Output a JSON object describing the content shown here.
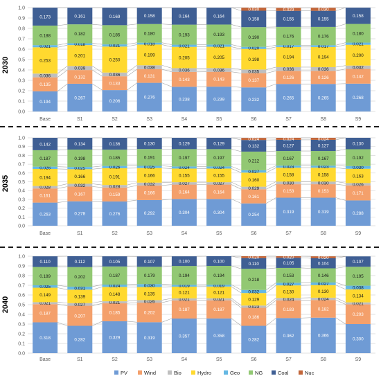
{
  "chart_data": [
    {
      "type": "bar",
      "stacked": true,
      "panel_label": "2030",
      "categories": [
        "Base",
        "S1",
        "S2",
        "S3",
        "S4",
        "S5",
        "S6",
        "S7",
        "S8",
        "S9"
      ],
      "yticks": [
        "0.0",
        "0.1",
        "0.2",
        "0.3",
        "0.4",
        "0.5",
        "0.6",
        "0.7",
        "0.8",
        "0.9",
        "1.0"
      ],
      "ylim": [
        0,
        1
      ],
      "series": [
        {
          "name": "PV",
          "values": [
            0.194,
            0.267,
            0.206,
            0.276,
            0.238,
            0.239,
            0.232,
            0.265,
            0.265,
            0.268
          ]
        },
        {
          "name": "Wind",
          "values": [
            0.135,
            0.132,
            0.133,
            0.131,
            0.143,
            0.143,
            0.137,
            0.126,
            0.126,
            0.142
          ]
        },
        {
          "name": "Bio",
          "values": [
            0.036,
            0.039,
            0.036,
            0.038,
            0.036,
            0.036,
            0.035,
            0.036,
            0.036,
            0.032
          ]
        },
        {
          "name": "Hydro",
          "values": [
            0.253,
            0.201,
            0.25,
            0.199,
            0.205,
            0.205,
            0.198,
            0.194,
            0.194,
            0.2
          ]
        },
        {
          "name": "Geo",
          "values": [
            0.021,
            0.018,
            0.021,
            0.018,
            0.021,
            0.021,
            0.02,
            0.017,
            0.017,
            0.021
          ]
        },
        {
          "name": "NG",
          "values": [
            0.188,
            0.182,
            0.185,
            0.18,
            0.193,
            0.193,
            0.19,
            0.176,
            0.176,
            0.18
          ]
        },
        {
          "name": "Coal",
          "values": [
            0.173,
            0.161,
            0.169,
            0.158,
            0.164,
            0.164,
            0.158,
            0.155,
            0.155,
            0.158
          ]
        },
        {
          "name": "Nuc",
          "values": [
            0,
            0,
            0,
            0,
            0,
            0,
            0.03,
            0.029,
            0.03,
            0
          ]
        }
      ]
    },
    {
      "type": "bar",
      "stacked": true,
      "panel_label": "2035",
      "categories": [
        "Base",
        "S1",
        "S2",
        "S3",
        "S4",
        "S5",
        "S6",
        "S7",
        "S8",
        "S9"
      ],
      "yticks": [
        "0.0",
        "0.1",
        "0.2",
        "0.3",
        "0.4",
        "0.5",
        "0.6",
        "0.7",
        "0.8",
        "0.9",
        "1.0"
      ],
      "ylim": [
        0,
        1
      ],
      "series": [
        {
          "name": "PV",
          "values": [
            0.263,
            0.278,
            0.276,
            0.292,
            0.304,
            0.304,
            0.254,
            0.319,
            0.319,
            0.288
          ]
        },
        {
          "name": "Wind",
          "values": [
            0.161,
            0.167,
            0.159,
            0.166,
            0.164,
            0.164,
            0.161,
            0.153,
            0.153,
            0.171
          ]
        },
        {
          "name": "Bio",
          "values": [
            0.028,
            0.032,
            0.028,
            0.032,
            0.027,
            0.027,
            0.029,
            0.03,
            0.03,
            0.026
          ]
        },
        {
          "name": "Hydro",
          "values": [
            0.194,
            0.166,
            0.191,
            0.166,
            0.155,
            0.155,
            0.16,
            0.158,
            0.158,
            0.163
          ]
        },
        {
          "name": "Geo",
          "values": [
            0.026,
            0.025,
            0.026,
            0.025,
            0.024,
            0.024,
            0.027,
            0.023,
            0.023,
            0.03
          ]
        },
        {
          "name": "NG",
          "values": [
            0.187,
            0.198,
            0.185,
            0.191,
            0.197,
            0.197,
            0.212,
            0.167,
            0.167,
            0.192
          ]
        },
        {
          "name": "Coal",
          "values": [
            0.142,
            0.134,
            0.136,
            0.13,
            0.129,
            0.129,
            0.132,
            0.127,
            0.127,
            0.13
          ]
        },
        {
          "name": "Nuc",
          "values": [
            0,
            0,
            0,
            0,
            0,
            0,
            0.024,
            0.024,
            0.024,
            0
          ]
        }
      ]
    },
    {
      "type": "bar",
      "stacked": true,
      "panel_label": "2040",
      "categories": [
        "Base",
        "S1",
        "S2",
        "S3",
        "S4",
        "S5",
        "S6",
        "S7",
        "S8",
        "S9"
      ],
      "yticks": [
        "0.0",
        "0.1",
        "0.2",
        "0.3",
        "0.4",
        "0.5",
        "0.6",
        "0.7",
        "0.8",
        "0.9",
        "1.0"
      ],
      "ylim": [
        0,
        1
      ],
      "series": [
        {
          "name": "PV",
          "values": [
            0.318,
            0.282,
            0.329,
            0.319,
            0.357,
            0.358,
            0.282,
            0.362,
            0.366,
            0.3
          ]
        },
        {
          "name": "Wind",
          "values": [
            0.187,
            0.207,
            0.185,
            0.202,
            0.187,
            0.187,
            0.186,
            0.183,
            0.182,
            0.203
          ]
        },
        {
          "name": "Bio",
          "values": [
            0.021,
            0.027,
            0.021,
            0.026,
            0.021,
            0.021,
            0.023,
            0.024,
            0.024,
            0.021
          ]
        },
        {
          "name": "Hydro",
          "values": [
            0.149,
            0.139,
            0.148,
            0.135,
            0.121,
            0.121,
            0.129,
            0.13,
            0.13,
            0.134
          ]
        },
        {
          "name": "Geo",
          "values": [
            0.025,
            0.031,
            0.024,
            0.03,
            0.019,
            0.019,
            0.032,
            0.027,
            0.027,
            0.038
          ]
        },
        {
          "name": "NG",
          "values": [
            0.189,
            0.202,
            0.187,
            0.179,
            0.194,
            0.194,
            0.218,
            0.153,
            0.146,
            0.195
          ]
        },
        {
          "name": "Coal",
          "values": [
            0.11,
            0.112,
            0.105,
            0.107,
            0.1,
            0.1,
            0.11,
            0.105,
            0.104,
            0.107
          ]
        },
        {
          "name": "Nuc",
          "values": [
            0,
            0,
            0,
            0,
            0,
            0,
            0.02,
            0.02,
            0.02,
            0
          ]
        }
      ]
    }
  ],
  "legend": {
    "placement": "bottom",
    "items": [
      {
        "name": "PV",
        "color": "#6f9bd5"
      },
      {
        "name": "Wind",
        "color": "#f4a06b"
      },
      {
        "name": "Bio",
        "color": "#bfbfbf"
      },
      {
        "name": "Hydro",
        "color": "#ffd92f"
      },
      {
        "name": "Geo",
        "color": "#65b8e3"
      },
      {
        "name": "NG",
        "color": "#92c873"
      },
      {
        "name": "Coal",
        "color": "#3f5f94"
      },
      {
        "name": "Nuc",
        "color": "#c2663a"
      }
    ]
  },
  "colors": {
    "PV": "#6f9bd5",
    "Wind": "#f4a06b",
    "Bio": "#bfbfbf",
    "Hydro": "#ffd92f",
    "Geo": "#65b8e3",
    "NG": "#92c873",
    "Coal": "#3f5f94",
    "Nuc": "#c2663a",
    "label_light": "#ffffff",
    "label_dark": "#1a1a1a",
    "axis": "#595959",
    "grid": "#d9d9d9",
    "connector": "#a6a6a6",
    "separator": "#1a1a1a"
  }
}
